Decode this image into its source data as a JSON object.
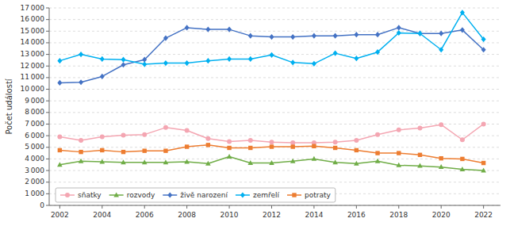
{
  "chart_data": {
    "type": "line",
    "ylabel": "Počet událostí",
    "x": [
      2002,
      2003,
      2004,
      2005,
      2006,
      2007,
      2008,
      2009,
      2010,
      2011,
      2012,
      2013,
      2014,
      2015,
      2016,
      2017,
      2018,
      2019,
      2020,
      2021,
      2022
    ],
    "series": [
      {
        "name": "sňatky",
        "color": "#f4a6b2",
        "marker": "circle",
        "values": [
          5900,
          5600,
          5900,
          6050,
          6100,
          6700,
          6450,
          5750,
          5500,
          5600,
          5450,
          5400,
          5400,
          5450,
          5600,
          6100,
          6500,
          6650,
          6950,
          5650,
          7000
        ]
      },
      {
        "name": "rozvody",
        "color": "#70ad47",
        "marker": "triangle",
        "values": [
          3500,
          3800,
          3750,
          3700,
          3700,
          3700,
          3750,
          3600,
          4200,
          3650,
          3650,
          3800,
          4000,
          3700,
          3600,
          3800,
          3450,
          3400,
          3300,
          3100,
          3000
        ]
      },
      {
        "name": "živě narození",
        "color": "#4472c4",
        "marker": "diamond",
        "values": [
          10550,
          10600,
          11100,
          12100,
          12550,
          14400,
          15300,
          15150,
          15150,
          14600,
          14500,
          14500,
          14600,
          14600,
          14700,
          14700,
          15300,
          14800,
          14800,
          15100,
          13400
        ]
      },
      {
        "name": "zemřelí",
        "color": "#00b0f0",
        "marker": "diamond",
        "values": [
          12450,
          13000,
          12600,
          12550,
          12150,
          12250,
          12250,
          12450,
          12600,
          12600,
          12950,
          12300,
          12200,
          13100,
          12650,
          13200,
          14850,
          14800,
          13400,
          16600,
          14300
        ]
      },
      {
        "name": "potraty",
        "color": "#ed7d31",
        "marker": "square",
        "values": [
          4750,
          4600,
          4750,
          4600,
          4700,
          4700,
          5050,
          5200,
          4950,
          4950,
          5050,
          5050,
          5100,
          4950,
          4750,
          4500,
          4500,
          4350,
          4050,
          4000,
          3650
        ]
      }
    ],
    "xlim": [
      2001.5,
      2022.8
    ],
    "xticks": [
      2002,
      2004,
      2006,
      2008,
      2010,
      2012,
      2014,
      2016,
      2018,
      2020,
      2022
    ],
    "ylim": [
      0,
      17000
    ],
    "yticks": [
      0,
      {
        "value": 1000,
        "label": "1 000"
      },
      {
        "value": 2000,
        "label": "2 000"
      },
      {
        "value": 3000,
        "label": "3 000"
      },
      {
        "value": 4000,
        "label": "4 000"
      },
      {
        "value": 5000,
        "label": "5 000"
      },
      {
        "value": 6000,
        "label": "6 000"
      },
      {
        "value": 7000,
        "label": "7 000"
      },
      {
        "value": 8000,
        "label": "8 000"
      },
      {
        "value": 9000,
        "label": "9 000"
      },
      {
        "value": 10000,
        "label": "10 000"
      },
      {
        "value": 11000,
        "label": "11 000"
      },
      {
        "value": 12000,
        "label": "12 000"
      },
      {
        "value": 13000,
        "label": "13 000"
      },
      {
        "value": 14000,
        "label": "14 000"
      },
      {
        "value": 15000,
        "label": "15 000"
      },
      {
        "value": 16000,
        "label": "16 000"
      },
      {
        "value": 17000,
        "label": "17 000"
      }
    ],
    "grid": true,
    "legend": "lower left"
  }
}
